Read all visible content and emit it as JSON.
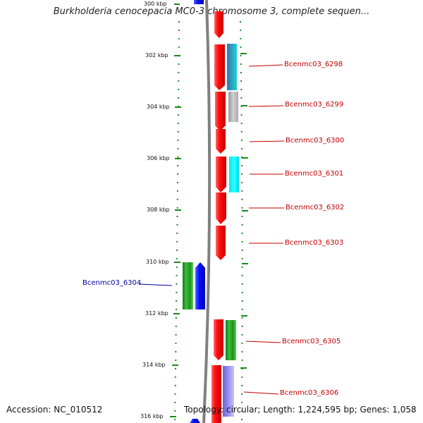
{
  "title": "Burkholderia cenocepacia MC0-3 chromosome 3, complete sequen...",
  "footer": {
    "accession": "Accession: NC_010512",
    "summary": "Topology: circular; Length: 1,224,595 bp; Genes: 1,058"
  },
  "axis": {
    "unit": "kbp",
    "tick_labels": [
      "300 kbp",
      "302 kbp",
      "304 kbp",
      "306 kbp",
      "308 kbp",
      "310 kbp",
      "312 kbp",
      "314 kbp",
      "316 kbp"
    ]
  },
  "gene_labels": [
    {
      "text": "Bcenmc03_6298",
      "color": "#c40000"
    },
    {
      "text": "Bcenmc03_6299",
      "color": "#c40000"
    },
    {
      "text": "Bcenmc03_6300",
      "color": "#c40000"
    },
    {
      "text": "Bcenmc03_6301",
      "color": "#c40000"
    },
    {
      "text": "Bcenmc03_6302",
      "color": "#c40000"
    },
    {
      "text": "Bcenmc03_6303",
      "color": "#c40000"
    },
    {
      "text": "Bcenmc03_6304",
      "color": "#0000a0"
    },
    {
      "text": "Bcenmc03_6305",
      "color": "#c40000"
    },
    {
      "text": "Bcenmc03_6306",
      "color": "#c40000"
    }
  ],
  "colors": {
    "forward_gene": "#ff1010",
    "reverse_gene": "#0010ff",
    "backbone": "#808080",
    "guide": "#1a8a1a",
    "cog_teal": "#2aa6b8",
    "cog_gray": "#b8b8b8",
    "cog_cyan": "#00ffff",
    "cog_green": "#22b022",
    "cog_lavender": "#8f86e8"
  }
}
